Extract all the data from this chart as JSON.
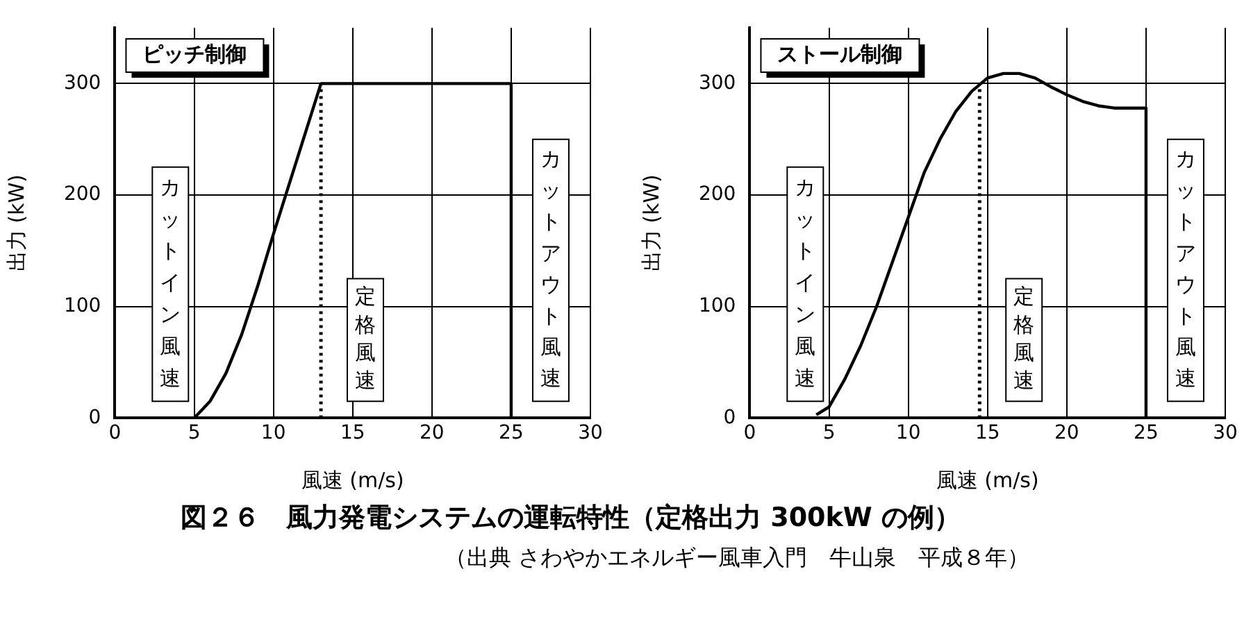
{
  "chart_data": [
    {
      "type": "line",
      "title": "ピッチ制御",
      "xlabel": "風速 (m/s)",
      "ylabel": "出力 (kW)",
      "xlim": [
        0,
        30
      ],
      "xticks": [
        0,
        5,
        10,
        15,
        20,
        25,
        30
      ],
      "ylim": [
        0,
        350
      ],
      "yticks": [
        0,
        100,
        200,
        300
      ],
      "grid": true,
      "line_style": "solid",
      "annotations": [
        "カットイン風速",
        "カットアウト風速"
      ],
      "ref_lines": [
        {
          "axis": "x",
          "value": 13,
          "label": "定格風速",
          "line_style": "dotted",
          "color": "#000000"
        }
      ],
      "series": [
        {
          "color": "#000000",
          "x": [
            5,
            6,
            7,
            8,
            9,
            10,
            11,
            12,
            13,
            25,
            25
          ],
          "values": [
            0,
            15,
            40,
            75,
            118,
            165,
            210,
            255,
            300,
            300,
            0
          ]
        }
      ]
    },
    {
      "type": "line",
      "title": "ストール制御",
      "xlabel": "風速 (m/s)",
      "ylabel": "出力 (kW)",
      "xlim": [
        0,
        30
      ],
      "xticks": [
        0,
        5,
        10,
        15,
        20,
        25,
        30
      ],
      "ylim": [
        0,
        350
      ],
      "yticks": [
        0,
        100,
        200,
        300
      ],
      "grid": true,
      "line_style": "solid",
      "annotations": [
        "カットイン風速",
        "カットアウト風速"
      ],
      "ref_lines": [
        {
          "axis": "x",
          "value": 14.5,
          "label": "定格風速",
          "line_style": "dotted",
          "color": "#000000"
        }
      ],
      "series": [
        {
          "color": "#000000",
          "x": [
            4.2,
            5,
            6,
            7,
            8,
            9,
            10,
            11,
            12,
            13,
            14,
            15,
            16,
            17,
            18,
            19,
            20,
            21,
            22,
            23,
            25,
            25
          ],
          "values": [
            3,
            10,
            35,
            65,
            100,
            140,
            180,
            220,
            250,
            275,
            293,
            305,
            309,
            309,
            305,
            297,
            290,
            284,
            280,
            278,
            278,
            0
          ]
        }
      ]
    },
    {
      "type": "other",
      "title": "図２６　風力発電システムの運転特性（定格出力 300kW の例）",
      "subtitle": "（出典 さわやかエネルギー風車入門　牛山泉　平成８年）"
    }
  ]
}
